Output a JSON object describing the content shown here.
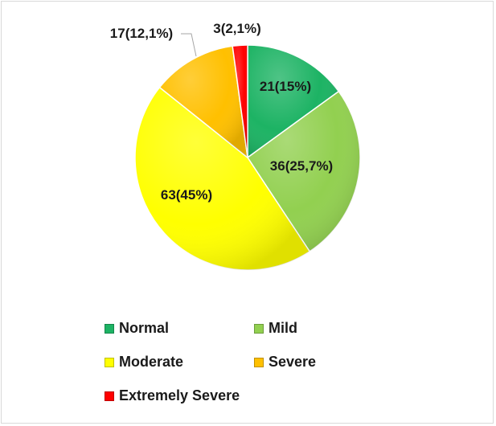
{
  "chart_data": {
    "type": "pie",
    "title": "",
    "slices": [
      {
        "name": "Normal",
        "value": 21,
        "label": "21(15%)",
        "color": "#1db364"
      },
      {
        "name": "Mild",
        "value": 36,
        "label": "36(25,7%)",
        "color": "#92d050"
      },
      {
        "name": "Moderate",
        "value": 63,
        "label": "63(45%)",
        "color": "#ffff00"
      },
      {
        "name": "Severe",
        "value": 17,
        "label": "17(12,1%)",
        "color": "#ffc000"
      },
      {
        "name": "Extremely Severe",
        "value": 3,
        "label": "3(2,1%)",
        "color": "#ff0000"
      }
    ],
    "legend_position": "bottom"
  },
  "legend": {
    "items": [
      {
        "label": "Normal",
        "color": "#1db364"
      },
      {
        "label": "Mild",
        "color": "#92d050"
      },
      {
        "label": "Moderate",
        "color": "#ffff00"
      },
      {
        "label": "Severe",
        "color": "#ffc000"
      },
      {
        "label": "Extremely Severe",
        "color": "#ff0000"
      }
    ]
  }
}
